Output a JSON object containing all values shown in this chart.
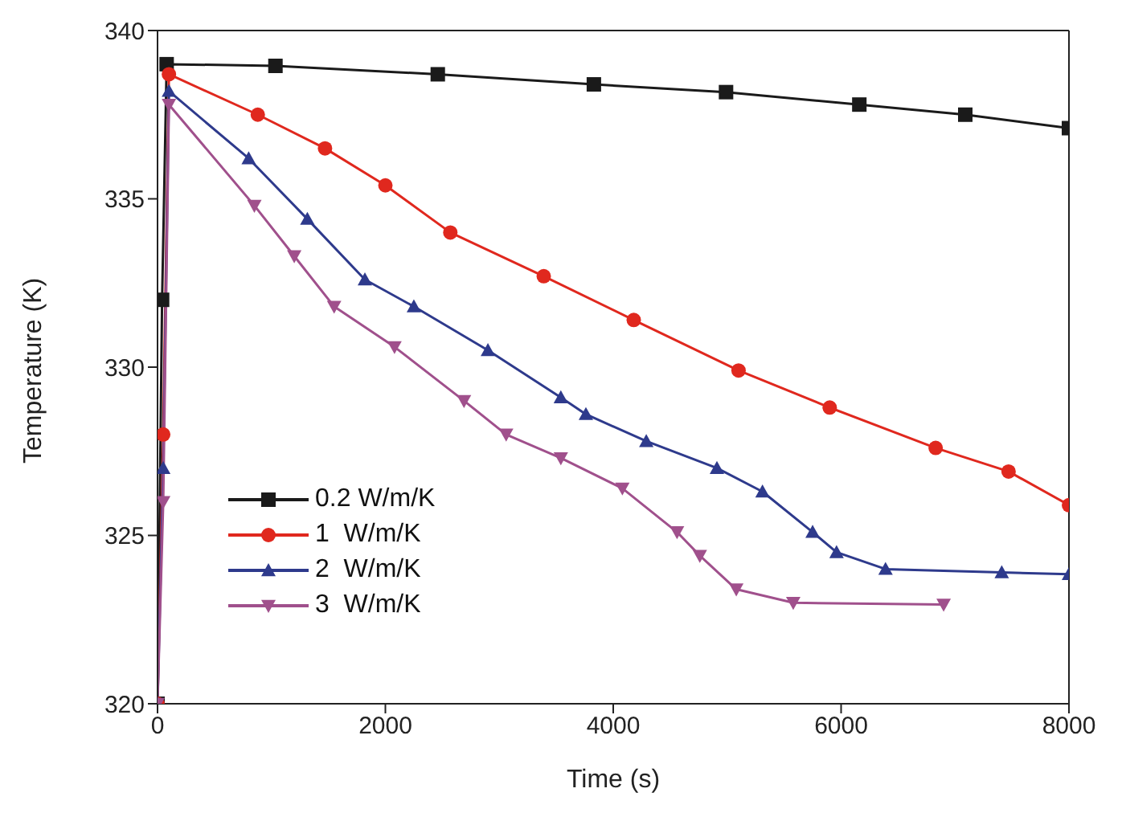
{
  "chart_data": {
    "type": "line",
    "xlabel": "Time (s)",
    "ylabel": "Temperature (K)",
    "xlim": [
      0,
      8000
    ],
    "ylim": [
      320,
      340
    ],
    "xticks": [
      0,
      2000,
      4000,
      6000,
      8000
    ],
    "yticks": [
      320,
      325,
      330,
      335,
      340
    ],
    "grid": false,
    "legend": "bottom left",
    "line_style": "solid",
    "series": [
      {
        "name": "0.2 W/m/K",
        "color": "#1a1a1a",
        "marker": "square",
        "x": [
          0,
          40,
          80,
          1035,
          2460,
          3830,
          4990,
          6160,
          7090,
          8000
        ],
        "values": [
          320,
          332,
          339,
          338.95,
          338.7,
          338.4,
          338.17,
          337.8,
          337.5,
          337.1
        ]
      },
      {
        "name": "1  W/m/K",
        "color": "#e0281e",
        "marker": "circle",
        "x": [
          0,
          50,
          100,
          880,
          1470,
          2000,
          2570,
          3390,
          4180,
          5100,
          5900,
          6830,
          7470,
          8000
        ],
        "values": [
          320,
          328,
          338.7,
          337.5,
          336.5,
          335.4,
          334,
          332.7,
          331.4,
          329.9,
          328.8,
          327.6,
          326.9,
          325.9
        ]
      },
      {
        "name": "2  W/m/K",
        "color": "#2e3a8c",
        "marker": "triangle",
        "x": [
          0,
          50,
          100,
          800,
          1315,
          1820,
          2250,
          2900,
          3540,
          3760,
          4290,
          4910,
          5310,
          5750,
          5960,
          6390,
          7410,
          8000
        ],
        "values": [
          320,
          327,
          338.2,
          336.2,
          334.4,
          332.6,
          331.8,
          330.5,
          329.1,
          328.6,
          327.8,
          327,
          326.3,
          325.1,
          324.5,
          324,
          323.9,
          323.85
        ]
      },
      {
        "name": "3  W/m/K",
        "color": "#a0508c",
        "marker": "triangle-down",
        "x": [
          0,
          50,
          100,
          850,
          1200,
          1550,
          2080,
          2690,
          3060,
          3540,
          4080,
          4560,
          4760,
          5080,
          5580,
          6900
        ],
        "values": [
          320,
          326,
          337.8,
          334.8,
          333.3,
          331.8,
          330.6,
          329,
          328,
          327.3,
          326.4,
          325.1,
          324.4,
          323.4,
          323,
          322.95
        ]
      }
    ]
  }
}
